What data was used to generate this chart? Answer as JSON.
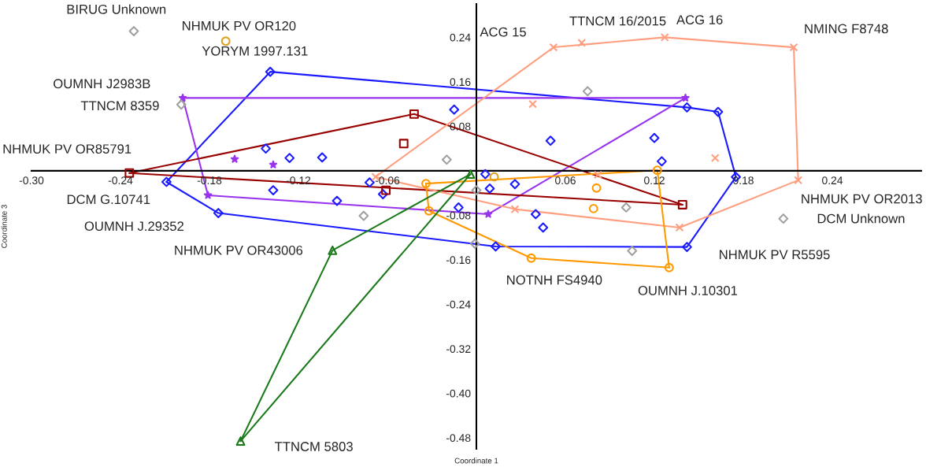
{
  "chart_data": {
    "type": "scatter",
    "xlabel": "Coordinate 1",
    "ylabel": "Coordinate 3",
    "xlim": [
      -0.3,
      0.3
    ],
    "ylim": [
      -0.5,
      0.3
    ],
    "xticks": [
      {
        "value": -0.3,
        "label": "-0.30"
      },
      {
        "value": -0.24,
        "label": "-0.24"
      },
      {
        "value": -0.18,
        "label": "-0.18"
      },
      {
        "value": -0.12,
        "label": "-0.12"
      },
      {
        "value": -0.06,
        "label": "-0.06"
      },
      {
        "value": 0.06,
        "label": "0.06"
      },
      {
        "value": 0.12,
        "label": "0.12"
      },
      {
        "value": 0.18,
        "label": "0.18"
      },
      {
        "value": 0.24,
        "label": "0.24"
      }
    ],
    "yticks": [
      {
        "value": 0.24,
        "label": "0.24"
      },
      {
        "value": 0.16,
        "label": "0.16"
      },
      {
        "value": 0.08,
        "label": "0.08"
      },
      {
        "value": -0.08,
        "label": "-0.08"
      },
      {
        "value": -0.16,
        "label": "-0.16"
      },
      {
        "value": -0.24,
        "label": "-0.24"
      },
      {
        "value": -0.32,
        "label": "-0.32"
      },
      {
        "value": -0.4,
        "label": "-0.40"
      },
      {
        "value": -0.48,
        "label": "-0.48"
      }
    ],
    "grid": false,
    "legend": false,
    "series": [
      {
        "type": "scatter",
        "color": "#1a1aff",
        "marker": "diamond",
        "x": [
          -0.139,
          -0.015,
          -0.142,
          -0.126,
          -0.104,
          -0.209,
          -0.137,
          -0.072,
          -0.063,
          -0.094,
          -0.174,
          -0.012,
          0.05,
          0.12,
          0.125,
          0.006,
          0.026,
          0.009,
          0.04,
          0.045,
          0.142,
          0.163,
          0.175,
          0.013,
          0.142
        ],
        "values": [
          0.178,
          0.11,
          0.04,
          0.023,
          0.024,
          -0.02,
          -0.035,
          -0.021,
          -0.042,
          -0.054,
          -0.076,
          -0.066,
          0.054,
          0.059,
          0.017,
          -0.006,
          -0.024,
          -0.032,
          -0.078,
          -0.102,
          0.114,
          0.106,
          -0.011,
          -0.136,
          -0.137
        ]
      },
      {
        "type": "line",
        "color": "#1a1aff",
        "x": [
          -0.209,
          -0.139,
          0.142,
          0.163,
          0.175
        ],
        "values": [
          -0.02,
          0.178,
          0.114,
          0.106,
          -0.011
        ]
      },
      {
        "type": "line",
        "color": "#1a1aff",
        "x": [
          -0.209,
          -0.174,
          0.013,
          0.142,
          0.175
        ],
        "values": [
          -0.02,
          -0.076,
          -0.136,
          -0.137,
          -0.011
        ]
      },
      {
        "type": "scatter",
        "color": "#9933ee",
        "marker": "star",
        "x": [
          -0.198,
          -0.163,
          -0.137,
          -0.181,
          0.141,
          0.008
        ],
        "values": [
          0.131,
          0.021,
          0.011,
          -0.044,
          0.131,
          -0.078
        ]
      },
      {
        "type": "line",
        "color": "#9933ee",
        "x": [
          -0.198,
          0.141
        ],
        "values": [
          0.131,
          0.131
        ]
      },
      {
        "type": "line",
        "color": "#9933ee",
        "x": [
          -0.198,
          -0.181,
          0.008,
          0.141
        ],
        "values": [
          0.131,
          -0.044,
          -0.078,
          0.131
        ]
      },
      {
        "type": "scatter",
        "color": "#990000",
        "marker": "square",
        "x": [
          -0.234,
          -0.042,
          -0.049,
          -0.061,
          0.139
        ],
        "values": [
          -0.004,
          0.102,
          0.049,
          -0.035,
          -0.061
        ]
      },
      {
        "type": "line",
        "color": "#990000",
        "x": [
          -0.234,
          -0.042,
          0.139
        ],
        "values": [
          -0.004,
          0.102,
          -0.061
        ]
      },
      {
        "type": "line",
        "color": "#990000",
        "x": [
          -0.234,
          0.139
        ],
        "values": [
          -0.004,
          -0.061
        ]
      },
      {
        "type": "scatter",
        "color": "#ff9f80",
        "marker": "cross",
        "x": [
          0.052,
          0.071,
          0.127,
          0.214,
          0.038,
          0.161,
          0.217,
          0.082,
          0.026,
          0.137,
          -0.068
        ],
        "values": [
          0.222,
          0.23,
          0.24,
          0.222,
          0.12,
          0.023,
          -0.017,
          -0.007,
          -0.069,
          -0.102,
          -0.011
        ]
      },
      {
        "type": "line",
        "color": "#ff9f80",
        "x": [
          -0.068,
          0.052,
          0.127,
          0.214,
          0.217
        ],
        "values": [
          -0.011,
          0.222,
          0.24,
          0.222,
          -0.017
        ]
      },
      {
        "type": "line",
        "color": "#ff9f80",
        "x": [
          -0.068,
          0.026,
          0.137,
          0.217
        ],
        "values": [
          -0.011,
          -0.069,
          -0.102,
          -0.017
        ]
      },
      {
        "type": "scatter",
        "color": "#ff9900",
        "marker": "circle",
        "x": [
          -0.034,
          -0.032,
          0.081,
          0.079,
          0.037,
          0.13,
          0.122
        ],
        "values": [
          -0.023,
          -0.072,
          -0.031,
          -0.068,
          -0.157,
          -0.174,
          0.001
        ]
      },
      {
        "type": "line",
        "color": "#ff9900",
        "x": [
          -0.034,
          0.122,
          0.13
        ],
        "values": [
          -0.023,
          0.001,
          -0.174
        ]
      },
      {
        "type": "line",
        "color": "#ff9900",
        "x": [
          -0.034,
          -0.032,
          0.037,
          0.13
        ],
        "values": [
          -0.023,
          -0.072,
          -0.157,
          -0.174
        ]
      },
      {
        "type": "scatter",
        "color": "#1a7a1a",
        "marker": "triangle",
        "x": [
          -0.004,
          -0.097,
          -0.159
        ],
        "values": [
          -0.006,
          -0.143,
          -0.486
        ]
      },
      {
        "type": "line",
        "color": "#1a7a1a",
        "x": [
          -0.159,
          -0.097,
          -0.004
        ],
        "values": [
          -0.486,
          -0.143,
          -0.006
        ]
      },
      {
        "type": "line",
        "color": "#1a7a1a",
        "x": [
          -0.159,
          -0.004
        ],
        "values": [
          -0.486,
          -0.006
        ]
      },
      {
        "type": "scatter",
        "color": "#a0a0a0",
        "marker": "diamond",
        "x": [
          -0.231,
          -0.199,
          -0.02,
          -0.076,
          0.075,
          0.0,
          0.101,
          -0.001,
          0.105,
          0.207
        ],
        "values": [
          0.251,
          0.119,
          0.02,
          -0.081,
          0.143,
          -0.035,
          -0.066,
          -0.131,
          -0.144,
          -0.086
        ]
      },
      {
        "type": "scatter",
        "color": "#e0a020",
        "marker": "circle",
        "x": [
          -0.169,
          0.012
        ],
        "values": [
          0.233,
          -0.011
        ]
      }
    ],
    "annotations": [
      {
        "text": "BIRUG Unknown",
        "x": -0.231,
        "y": 0.251
      },
      {
        "text": "NHMUK PV OR120",
        "x": -0.169,
        "y": 0.233
      },
      {
        "text": "YORYM 1997.131",
        "x": -0.139,
        "y": 0.178
      },
      {
        "text": "OUMNH J2983B",
        "x": -0.198,
        "y": 0.131
      },
      {
        "text": "TTNCM 8359",
        "x": -0.199,
        "y": 0.119
      },
      {
        "text": "NHMUK PV OR85791",
        "x": -0.234,
        "y": -0.004
      },
      {
        "text": "DCM G.10741",
        "x": -0.209,
        "y": -0.02
      },
      {
        "text": "OUMNH J.29352",
        "x": -0.174,
        "y": -0.076
      },
      {
        "text": "NHMUK PV OR43006",
        "x": -0.097,
        "y": -0.143
      },
      {
        "text": "TTNCM 5803",
        "x": -0.159,
        "y": -0.486
      },
      {
        "text": "ACG 15",
        "x": 0.052,
        "y": 0.222
      },
      {
        "text": "TTNCM 16/2015",
        "x": 0.071,
        "y": 0.23
      },
      {
        "text": "ACG 16",
        "x": 0.127,
        "y": 0.24
      },
      {
        "text": "NMING F8748",
        "x": 0.214,
        "y": 0.222
      },
      {
        "text": "NHMUK PV OR2013",
        "x": 0.217,
        "y": -0.017
      },
      {
        "text": "DCM Unknown",
        "x": 0.207,
        "y": -0.086
      },
      {
        "text": "NHMUK PV R5595",
        "x": 0.142,
        "y": -0.137
      },
      {
        "text": "NOTNH FS4940",
        "x": 0.037,
        "y": -0.157
      },
      {
        "text": "OUMNH J.10301",
        "x": 0.13,
        "y": -0.174
      }
    ]
  }
}
